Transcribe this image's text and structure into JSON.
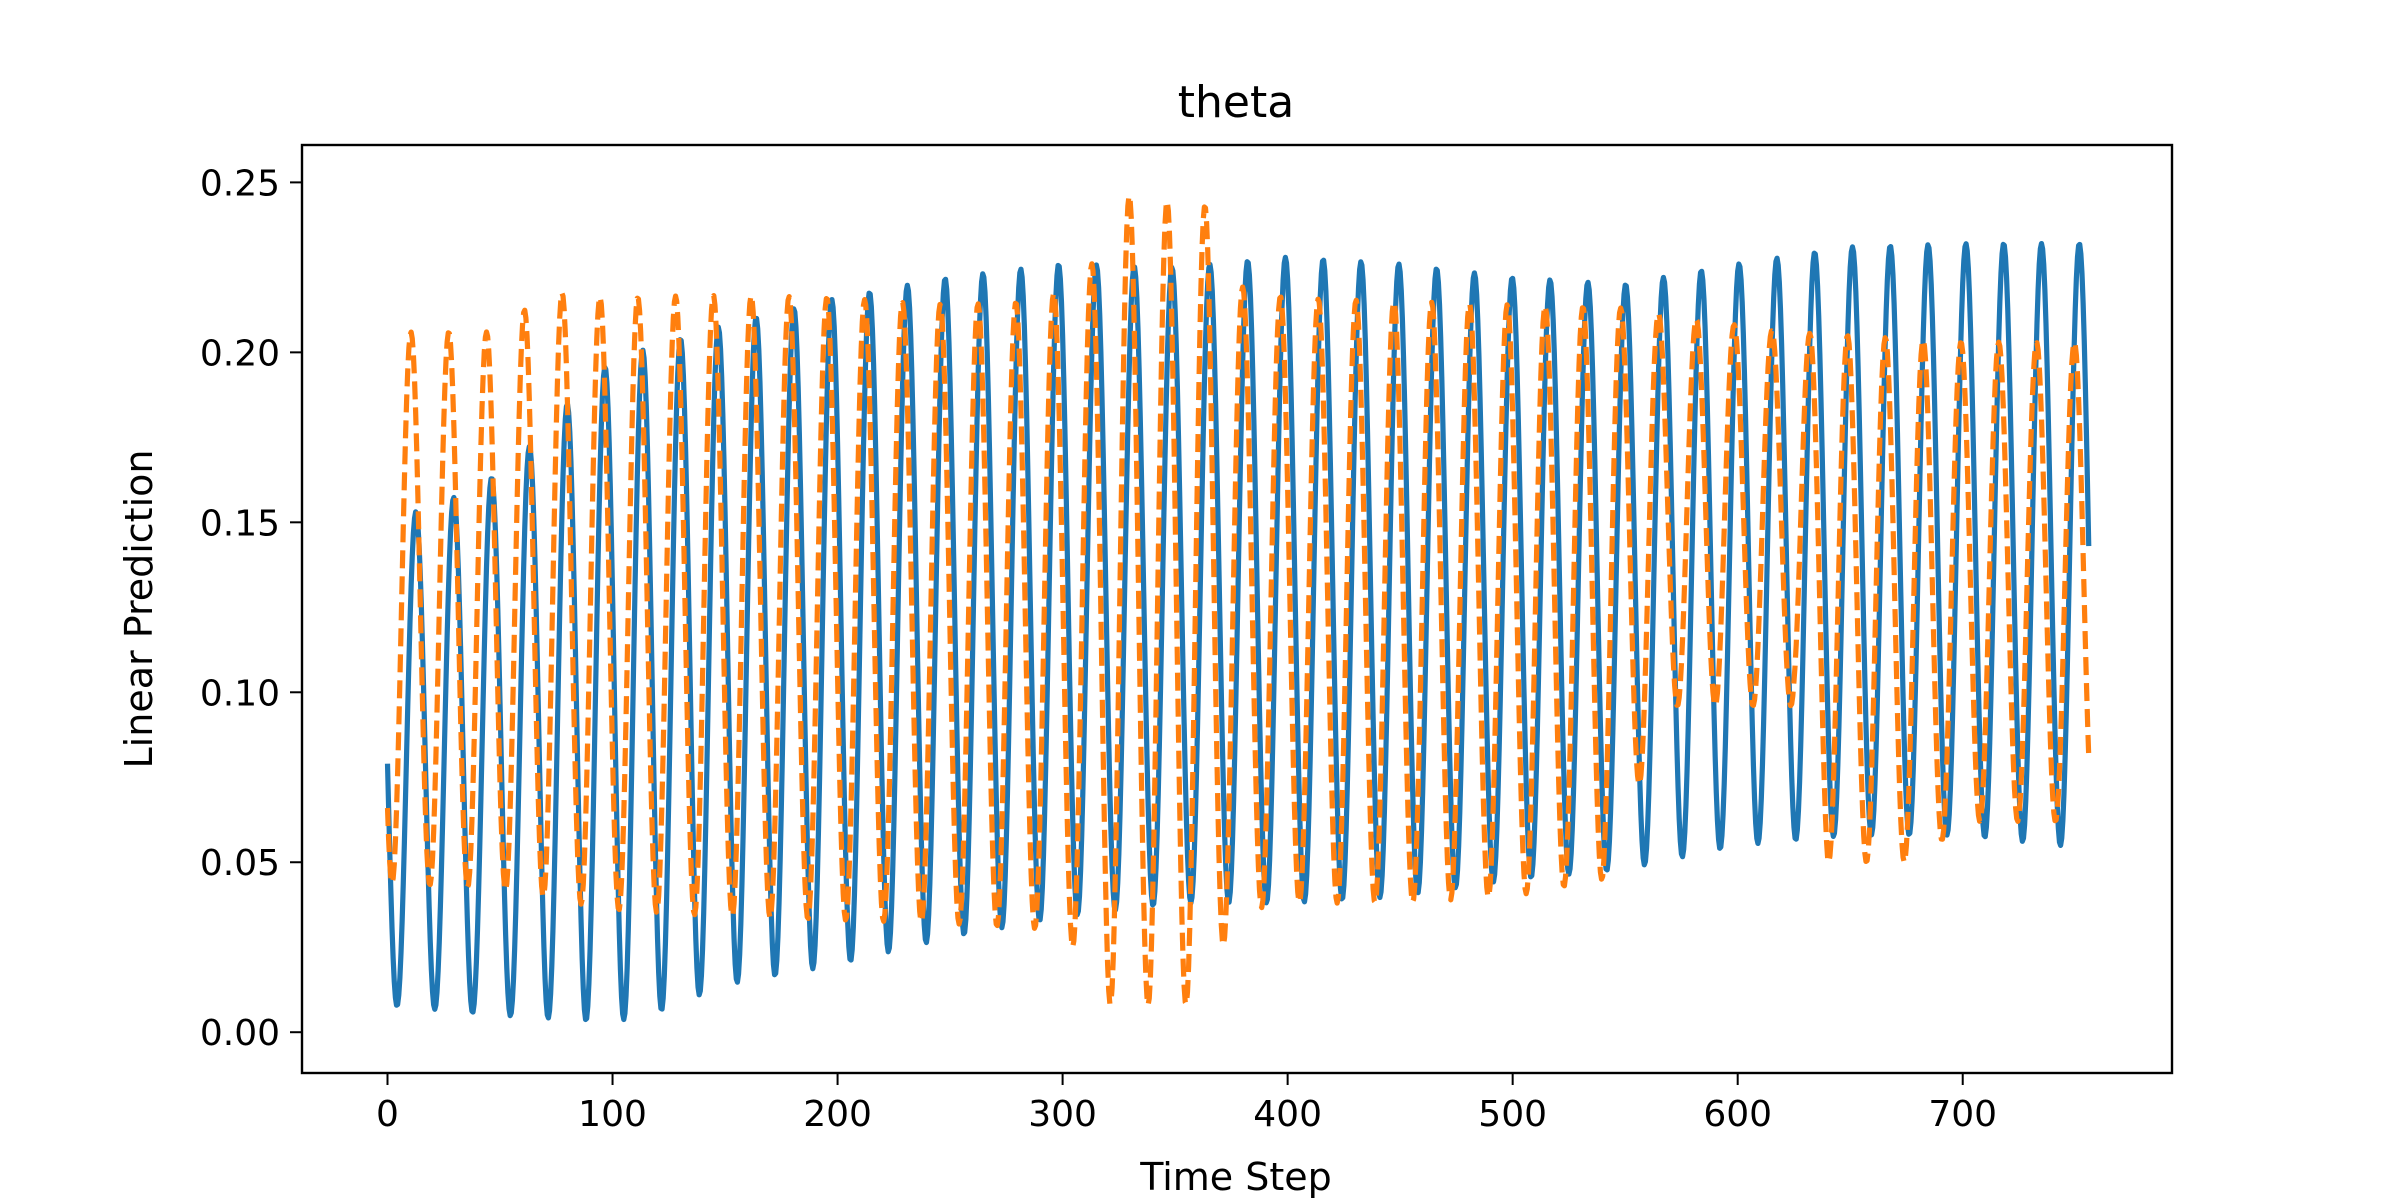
{
  "chart_data": {
    "type": "line",
    "title": "theta",
    "xlabel": "Time Step",
    "ylabel": "Linear Prediction",
    "xlim": [
      -38,
      793
    ],
    "ylim": [
      -0.012,
      0.261
    ],
    "xticks": [
      0,
      100,
      200,
      300,
      400,
      500,
      600,
      700
    ],
    "xtick_labels": [
      "0",
      "100",
      "200",
      "300",
      "400",
      "500",
      "600",
      "700"
    ],
    "yticks": [
      0.0,
      0.05,
      0.1,
      0.15,
      0.2,
      0.25
    ],
    "ytick_labels": [
      "0.00",
      "0.05",
      "0.10",
      "0.15",
      "0.20",
      "0.25"
    ],
    "grid": false,
    "legend": "none",
    "x_range": [
      0,
      756
    ],
    "period": 16.8,
    "series": [
      {
        "style": "solid",
        "color": "#1f77b4",
        "phase0": 0.75,
        "peaks": [
          [
            0,
            0.15
          ],
          [
            40,
            0.16
          ],
          [
            60,
            0.17
          ],
          [
            80,
            0.185
          ],
          [
            100,
            0.198
          ],
          [
            150,
            0.208
          ],
          [
            200,
            0.216
          ],
          [
            250,
            0.222
          ],
          [
            300,
            0.226
          ],
          [
            350,
            0.225
          ],
          [
            400,
            0.228
          ],
          [
            450,
            0.226
          ],
          [
            500,
            0.222
          ],
          [
            550,
            0.22
          ],
          [
            600,
            0.226
          ],
          [
            650,
            0.231
          ],
          [
            700,
            0.232
          ],
          [
            756,
            0.232
          ]
        ],
        "troughs": [
          [
            0,
            0.008
          ],
          [
            50,
            0.005
          ],
          [
            100,
            0.003
          ],
          [
            120,
            0.006
          ],
          [
            150,
            0.014
          ],
          [
            200,
            0.02
          ],
          [
            250,
            0.028
          ],
          [
            300,
            0.034
          ],
          [
            350,
            0.038
          ],
          [
            400,
            0.038
          ],
          [
            450,
            0.04
          ],
          [
            500,
            0.045
          ],
          [
            550,
            0.048
          ],
          [
            600,
            0.055
          ],
          [
            650,
            0.058
          ],
          [
            700,
            0.058
          ],
          [
            756,
            0.054
          ]
        ]
      },
      {
        "style": "dashed",
        "color": "#ff7f0e",
        "phase0": 0.62,
        "peaks": [
          [
            0,
            0.206
          ],
          [
            50,
            0.206
          ],
          [
            70,
            0.218
          ],
          [
            100,
            0.216
          ],
          [
            150,
            0.217
          ],
          [
            200,
            0.216
          ],
          [
            250,
            0.214
          ],
          [
            290,
            0.215
          ],
          [
            312,
            0.224
          ],
          [
            322,
            0.247
          ],
          [
            340,
            0.245
          ],
          [
            365,
            0.243
          ],
          [
            375,
            0.22
          ],
          [
            400,
            0.216
          ],
          [
            450,
            0.215
          ],
          [
            500,
            0.214
          ],
          [
            550,
            0.213
          ],
          [
            580,
            0.21
          ],
          [
            620,
            0.206
          ],
          [
            650,
            0.205
          ],
          [
            700,
            0.203
          ],
          [
            756,
            0.203
          ]
        ],
        "troughs": [
          [
            0,
            0.044
          ],
          [
            50,
            0.042
          ],
          [
            100,
            0.036
          ],
          [
            150,
            0.034
          ],
          [
            200,
            0.033
          ],
          [
            250,
            0.032
          ],
          [
            300,
            0.03
          ],
          [
            320,
            0.008
          ],
          [
            340,
            0.008
          ],
          [
            365,
            0.008
          ],
          [
            375,
            0.035
          ],
          [
            400,
            0.038
          ],
          [
            450,
            0.038
          ],
          [
            500,
            0.04
          ],
          [
            540,
            0.045
          ],
          [
            570,
            0.096
          ],
          [
            600,
            0.096
          ],
          [
            625,
            0.096
          ],
          [
            640,
            0.05
          ],
          [
            680,
            0.05
          ],
          [
            700,
            0.062
          ],
          [
            756,
            0.062
          ]
        ]
      }
    ]
  }
}
